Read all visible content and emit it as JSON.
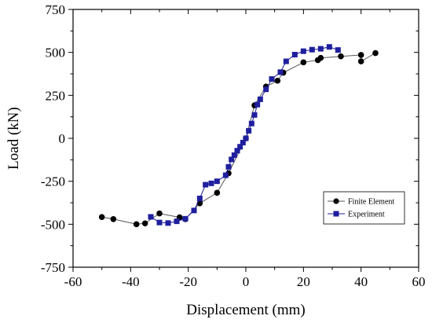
{
  "chart_data": {
    "type": "line",
    "title": "",
    "xlabel": "Displacement (mm)",
    "ylabel": "Load (kN)",
    "xlim": [
      -60,
      60
    ],
    "ylim": [
      -750,
      750
    ],
    "xticks": [
      -60,
      -40,
      -20,
      0,
      20,
      40,
      60
    ],
    "yticks": [
      -750,
      -500,
      -250,
      0,
      250,
      500,
      750
    ],
    "xtick_labels": [
      "-60",
      "-40",
      "-20",
      "0",
      "20",
      "40",
      "60"
    ],
    "ytick_labels": [
      "-750",
      "-500",
      "-250",
      "0",
      "250",
      "500",
      "750"
    ],
    "grid": false,
    "legend_position": "lower-right",
    "series": [
      {
        "name": "Finite Element",
        "color": "#000000",
        "line_color": "#555555",
        "marker": "circle",
        "x": [
          -50,
          -46,
          -38,
          -35,
          -30,
          -23,
          -21,
          -16,
          -10,
          -6,
          0,
          3,
          7,
          11,
          13,
          20,
          25,
          26,
          33,
          40,
          40,
          45
        ],
        "y": [
          -458,
          -470,
          -500,
          -495,
          -437,
          -460,
          -470,
          -378,
          -317,
          -203,
          0,
          192,
          301,
          335,
          382,
          442,
          455,
          468,
          477,
          485,
          448,
          496
        ]
      },
      {
        "name": "Experiment",
        "color": "#1f1f9e",
        "line_color": "#1f1f9e",
        "marker": "square",
        "x": [
          -33,
          -30,
          -27,
          -24,
          -21,
          -18,
          -16,
          -14,
          -12,
          -10,
          -7,
          -6,
          -5,
          -4,
          -3,
          -2,
          -1,
          0,
          1,
          2,
          3,
          4,
          5,
          7,
          9,
          12,
          14,
          17,
          20,
          23,
          26,
          29,
          32
        ],
        "y": [
          -457,
          -490,
          -493,
          -483,
          -468,
          -420,
          -350,
          -270,
          -262,
          -250,
          -215,
          -166,
          -123,
          -98,
          -72,
          -49,
          -25,
          0,
          44,
          86,
          136,
          196,
          227,
          285,
          345,
          385,
          448,
          487,
          507,
          516,
          521,
          532,
          514
        ]
      }
    ]
  }
}
